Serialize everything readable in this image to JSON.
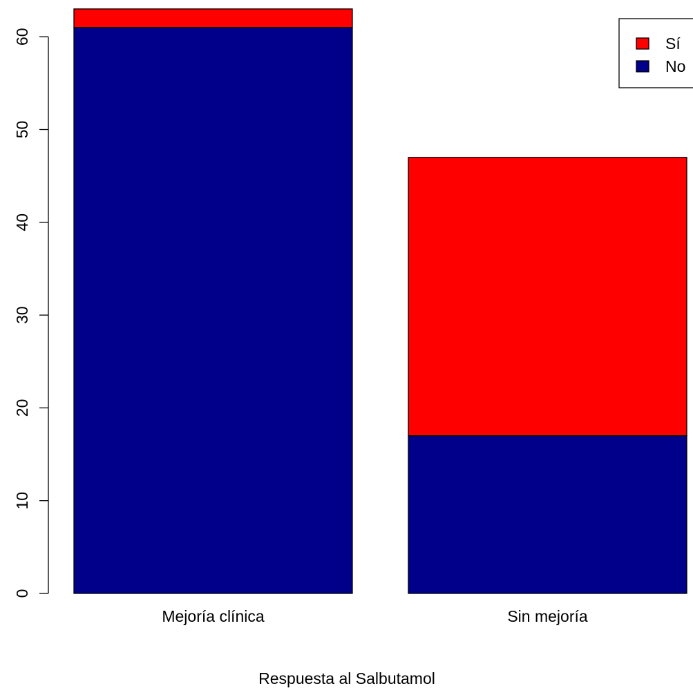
{
  "chart_data": {
    "type": "bar",
    "stacked": true,
    "categories": [
      "Mejoría clínica",
      "Sin mejoría"
    ],
    "series": [
      {
        "name": "No",
        "values": [
          61,
          17
        ],
        "color": "#00008B"
      },
      {
        "name": "Sí",
        "values": [
          2,
          30
        ],
        "color": "#FF0000"
      }
    ],
    "xlabel": "Respuesta al Salbutamol",
    "ylabel": "",
    "title": "",
    "ylim": [
      0,
      63
    ],
    "yticks": [
      0,
      10,
      20,
      30,
      40,
      50,
      60
    ],
    "legend": {
      "position": "top-right",
      "entries": [
        {
          "label": "Sí",
          "color": "#FF0000"
        },
        {
          "label": "No",
          "color": "#00008B"
        }
      ]
    },
    "grid": false
  }
}
